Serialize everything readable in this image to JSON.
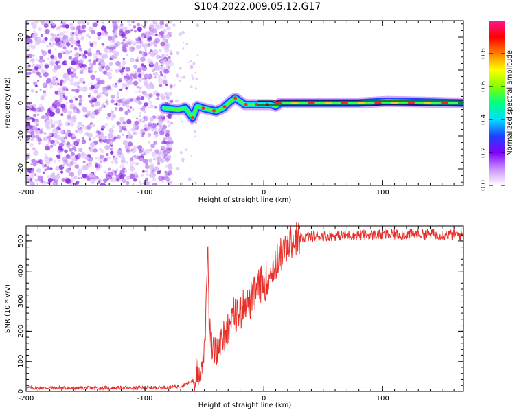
{
  "title": "S104.2022.009.05.12.G17",
  "colors": {
    "snr_line": "#e8302a",
    "axis": "#000000",
    "track": "#000000"
  },
  "chart_data": [
    {
      "type": "heatmap",
      "xlabel": "Height of straight line (km)",
      "ylabel": "Frequency (Hz)",
      "xlim": [
        -200,
        168
      ],
      "ylim": [
        -25,
        25
      ],
      "xticks": [
        -200,
        -100,
        0,
        100
      ],
      "xtick_labels": [
        "-200",
        "-100",
        "0",
        "100"
      ],
      "yticks": [
        -20,
        -10,
        0,
        10,
        20
      ],
      "ytick_labels": [
        "-20",
        "-10",
        "0",
        "10",
        "20"
      ],
      "colorbar": {
        "label": "Normalized spectral amplitude",
        "range": [
          0,
          1
        ],
        "ticks": [
          0.0,
          0.2,
          0.4,
          0.6,
          0.8
        ],
        "tick_labels": [
          "0.0",
          "0.2",
          "0.4",
          "0.6",
          "0.8"
        ],
        "colormap": [
          "#ffffff",
          "#c890ff",
          "#8000ff",
          "#2040ff",
          "#00e0ff",
          "#00ff80",
          "#80ff00",
          "#ffff00",
          "#ff8000",
          "#ff0000",
          "#ff1493"
        ]
      },
      "noise_region_x": [
        -200,
        -82
      ],
      "signal_track": {
        "x": [
          -84,
          -78,
          -72,
          -66,
          -60,
          -56,
          -52,
          -46,
          -40,
          -34,
          -28,
          -24,
          -20,
          -16,
          -10,
          -4,
          0,
          6,
          10,
          14,
          30,
          50,
          80,
          104,
          168
        ],
        "freq": [
          -1.5,
          -1.8,
          -2.0,
          -1.5,
          -4.5,
          -1.0,
          -1.5,
          -2.0,
          -2.5,
          -1.5,
          0.5,
          1.5,
          0.5,
          -0.5,
          -0.5,
          -0.5,
          -0.5,
          -0.5,
          -1.0,
          0.0,
          0.0,
          0.0,
          0.0,
          0.5,
          0.0
        ]
      },
      "model_line_x": [
        -5,
        168
      ],
      "model_line_freq": 0.0
    },
    {
      "type": "line",
      "xlabel": "Height of straight line (km)",
      "ylabel": "SNR (10 * v/v)",
      "xlim": [
        -200,
        168
      ],
      "ylim": [
        0,
        550
      ],
      "xticks": [
        -200,
        -100,
        0,
        100
      ],
      "xtick_labels": [
        "-200",
        "-100",
        "0",
        "100"
      ],
      "yticks": [
        0,
        100,
        200,
        300,
        400,
        500
      ],
      "ytick_labels": [
        "0",
        "100",
        "200",
        "300",
        "400",
        "500"
      ],
      "series": [
        {
          "x": [
            -200,
            -180,
            -160,
            -140,
            -120,
            -100,
            -80,
            -70,
            -62,
            -56,
            -52,
            -50,
            -48,
            -47,
            -46,
            -45,
            -44,
            -42,
            -40,
            -36,
            -32,
            -28,
            -24,
            -20,
            -16,
            -12,
            -8,
            -4,
            0,
            4,
            8,
            12,
            16,
            20,
            24,
            28,
            32,
            40,
            60,
            80,
            100,
            120,
            140,
            168
          ],
          "y": [
            12,
            12,
            11,
            12,
            12,
            12,
            14,
            18,
            30,
            50,
            90,
            150,
            320,
            480,
            200,
            250,
            150,
            140,
            120,
            170,
            200,
            230,
            260,
            260,
            300,
            290,
            320,
            350,
            360,
            380,
            410,
            440,
            460,
            480,
            500,
            505,
            510,
            515,
            518,
            520,
            520,
            522,
            522,
            520
          ]
        }
      ]
    }
  ]
}
